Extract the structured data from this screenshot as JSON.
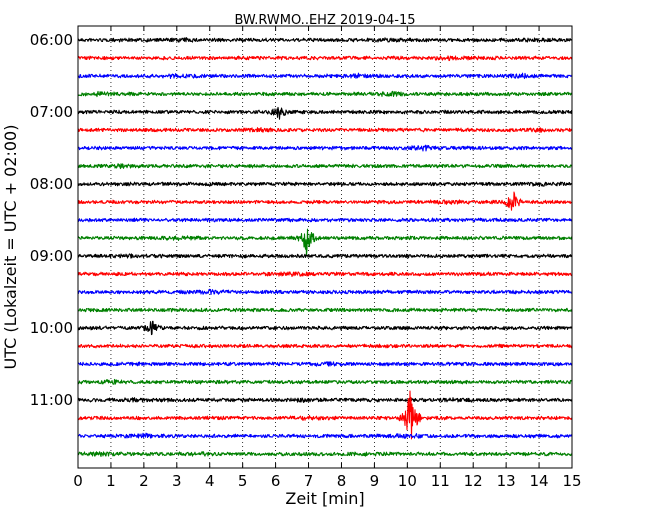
{
  "chart_data": {
    "type": "line",
    "title": "BW.RWMO..EHZ 2019-04-15",
    "xlabel": "Zeit  [min]",
    "ylabel": "UTC (Lokalzeit = UTC + 02:00)",
    "xlim": [
      0,
      15
    ],
    "x_ticks": [
      0,
      1,
      2,
      3,
      4,
      5,
      6,
      7,
      8,
      9,
      10,
      11,
      12,
      13,
      14,
      15
    ],
    "x_tick_labels": [
      "0",
      "1",
      "2",
      "3",
      "4",
      "5",
      "6",
      "7",
      "8",
      "9",
      "10",
      "11",
      "12",
      "13",
      "14",
      "15"
    ],
    "grid": "vertical dotted",
    "trace_colors": [
      "#000000",
      "#ff0000",
      "#0000ff",
      "#008000"
    ],
    "y_tick_labels": [
      "06:00",
      "07:00",
      "08:00",
      "09:00",
      "10:00",
      "11:00"
    ],
    "traces": [
      {
        "start": "06:00",
        "color": "#000000",
        "events": [
          {
            "minute": 3.2,
            "amp": 0.12
          },
          {
            "minute": 9.4,
            "amp": 0.12
          },
          {
            "minute": 13.8,
            "amp": 0.1
          }
        ]
      },
      {
        "start": "06:15",
        "color": "#ff0000",
        "events": [
          {
            "minute": 11.3,
            "amp": 0.15
          }
        ]
      },
      {
        "start": "06:30",
        "color": "#0000ff",
        "events": [
          {
            "minute": 3.0,
            "amp": 0.18
          },
          {
            "minute": 8.5,
            "amp": 0.2
          },
          {
            "minute": 13.5,
            "amp": 0.22
          }
        ]
      },
      {
        "start": "06:45",
        "color": "#008000",
        "events": [
          {
            "minute": 0.6,
            "amp": 0.18
          },
          {
            "minute": 9.5,
            "amp": 0.2
          }
        ]
      },
      {
        "start": "07:00",
        "color": "#000000",
        "events": [
          {
            "minute": 6.1,
            "amp": 0.6
          }
        ]
      },
      {
        "start": "07:15",
        "color": "#ff0000",
        "events": [
          {
            "minute": 5.5,
            "amp": 0.15
          },
          {
            "minute": 14.0,
            "amp": 0.14
          }
        ]
      },
      {
        "start": "07:30",
        "color": "#0000ff",
        "events": [
          {
            "minute": 10.5,
            "amp": 0.25
          }
        ]
      },
      {
        "start": "07:45",
        "color": "#008000",
        "events": [
          {
            "minute": 1.2,
            "amp": 0.15
          }
        ]
      },
      {
        "start": "08:00",
        "color": "#000000",
        "events": [
          {
            "minute": 14.1,
            "amp": 0.15
          }
        ]
      },
      {
        "start": "08:15",
        "color": "#ff0000",
        "events": [
          {
            "minute": 13.2,
            "amp": 1.0
          },
          {
            "minute": 11.2,
            "amp": 0.15
          }
        ]
      },
      {
        "start": "08:30",
        "color": "#0000ff",
        "events": []
      },
      {
        "start": "08:45",
        "color": "#008000",
        "events": [
          {
            "minute": 6.95,
            "amp": 1.4
          },
          {
            "minute": 3.0,
            "amp": 0.18
          }
        ]
      },
      {
        "start": "09:00",
        "color": "#000000",
        "events": [
          {
            "minute": 1.5,
            "amp": 0.12
          }
        ]
      },
      {
        "start": "09:15",
        "color": "#ff0000",
        "events": [
          {
            "minute": 6.6,
            "amp": 0.18
          }
        ]
      },
      {
        "start": "09:30",
        "color": "#0000ff",
        "events": [
          {
            "minute": 4.0,
            "amp": 0.2
          }
        ]
      },
      {
        "start": "09:45",
        "color": "#008000",
        "events": []
      },
      {
        "start": "10:00",
        "color": "#000000",
        "events": [
          {
            "minute": 2.25,
            "amp": 0.6
          }
        ]
      },
      {
        "start": "10:15",
        "color": "#ff0000",
        "events": []
      },
      {
        "start": "10:30",
        "color": "#0000ff",
        "events": [
          {
            "minute": 7.6,
            "amp": 0.15
          }
        ]
      },
      {
        "start": "10:45",
        "color": "#008000",
        "events": [
          {
            "minute": 1.1,
            "amp": 0.15
          }
        ]
      },
      {
        "start": "11:00",
        "color": "#000000",
        "events": [
          {
            "minute": 1.7,
            "amp": 0.15
          },
          {
            "minute": 6.8,
            "amp": 0.18
          },
          {
            "minute": 11.5,
            "amp": 0.12
          }
        ]
      },
      {
        "start": "11:15",
        "color": "#ff0000",
        "events": [
          {
            "minute": 10.1,
            "amp": 2.6
          },
          {
            "minute": 7.0,
            "amp": 0.2
          }
        ]
      },
      {
        "start": "11:30",
        "color": "#0000ff",
        "events": [
          {
            "minute": 2.0,
            "amp": 0.2
          },
          {
            "minute": 10.0,
            "amp": 0.2
          }
        ]
      },
      {
        "start": "11:45",
        "color": "#008000",
        "events": [
          {
            "minute": 0.6,
            "amp": 0.15
          },
          {
            "minute": 3.8,
            "amp": 0.15
          },
          {
            "minute": 8.8,
            "amp": 0.15
          }
        ]
      }
    ]
  }
}
